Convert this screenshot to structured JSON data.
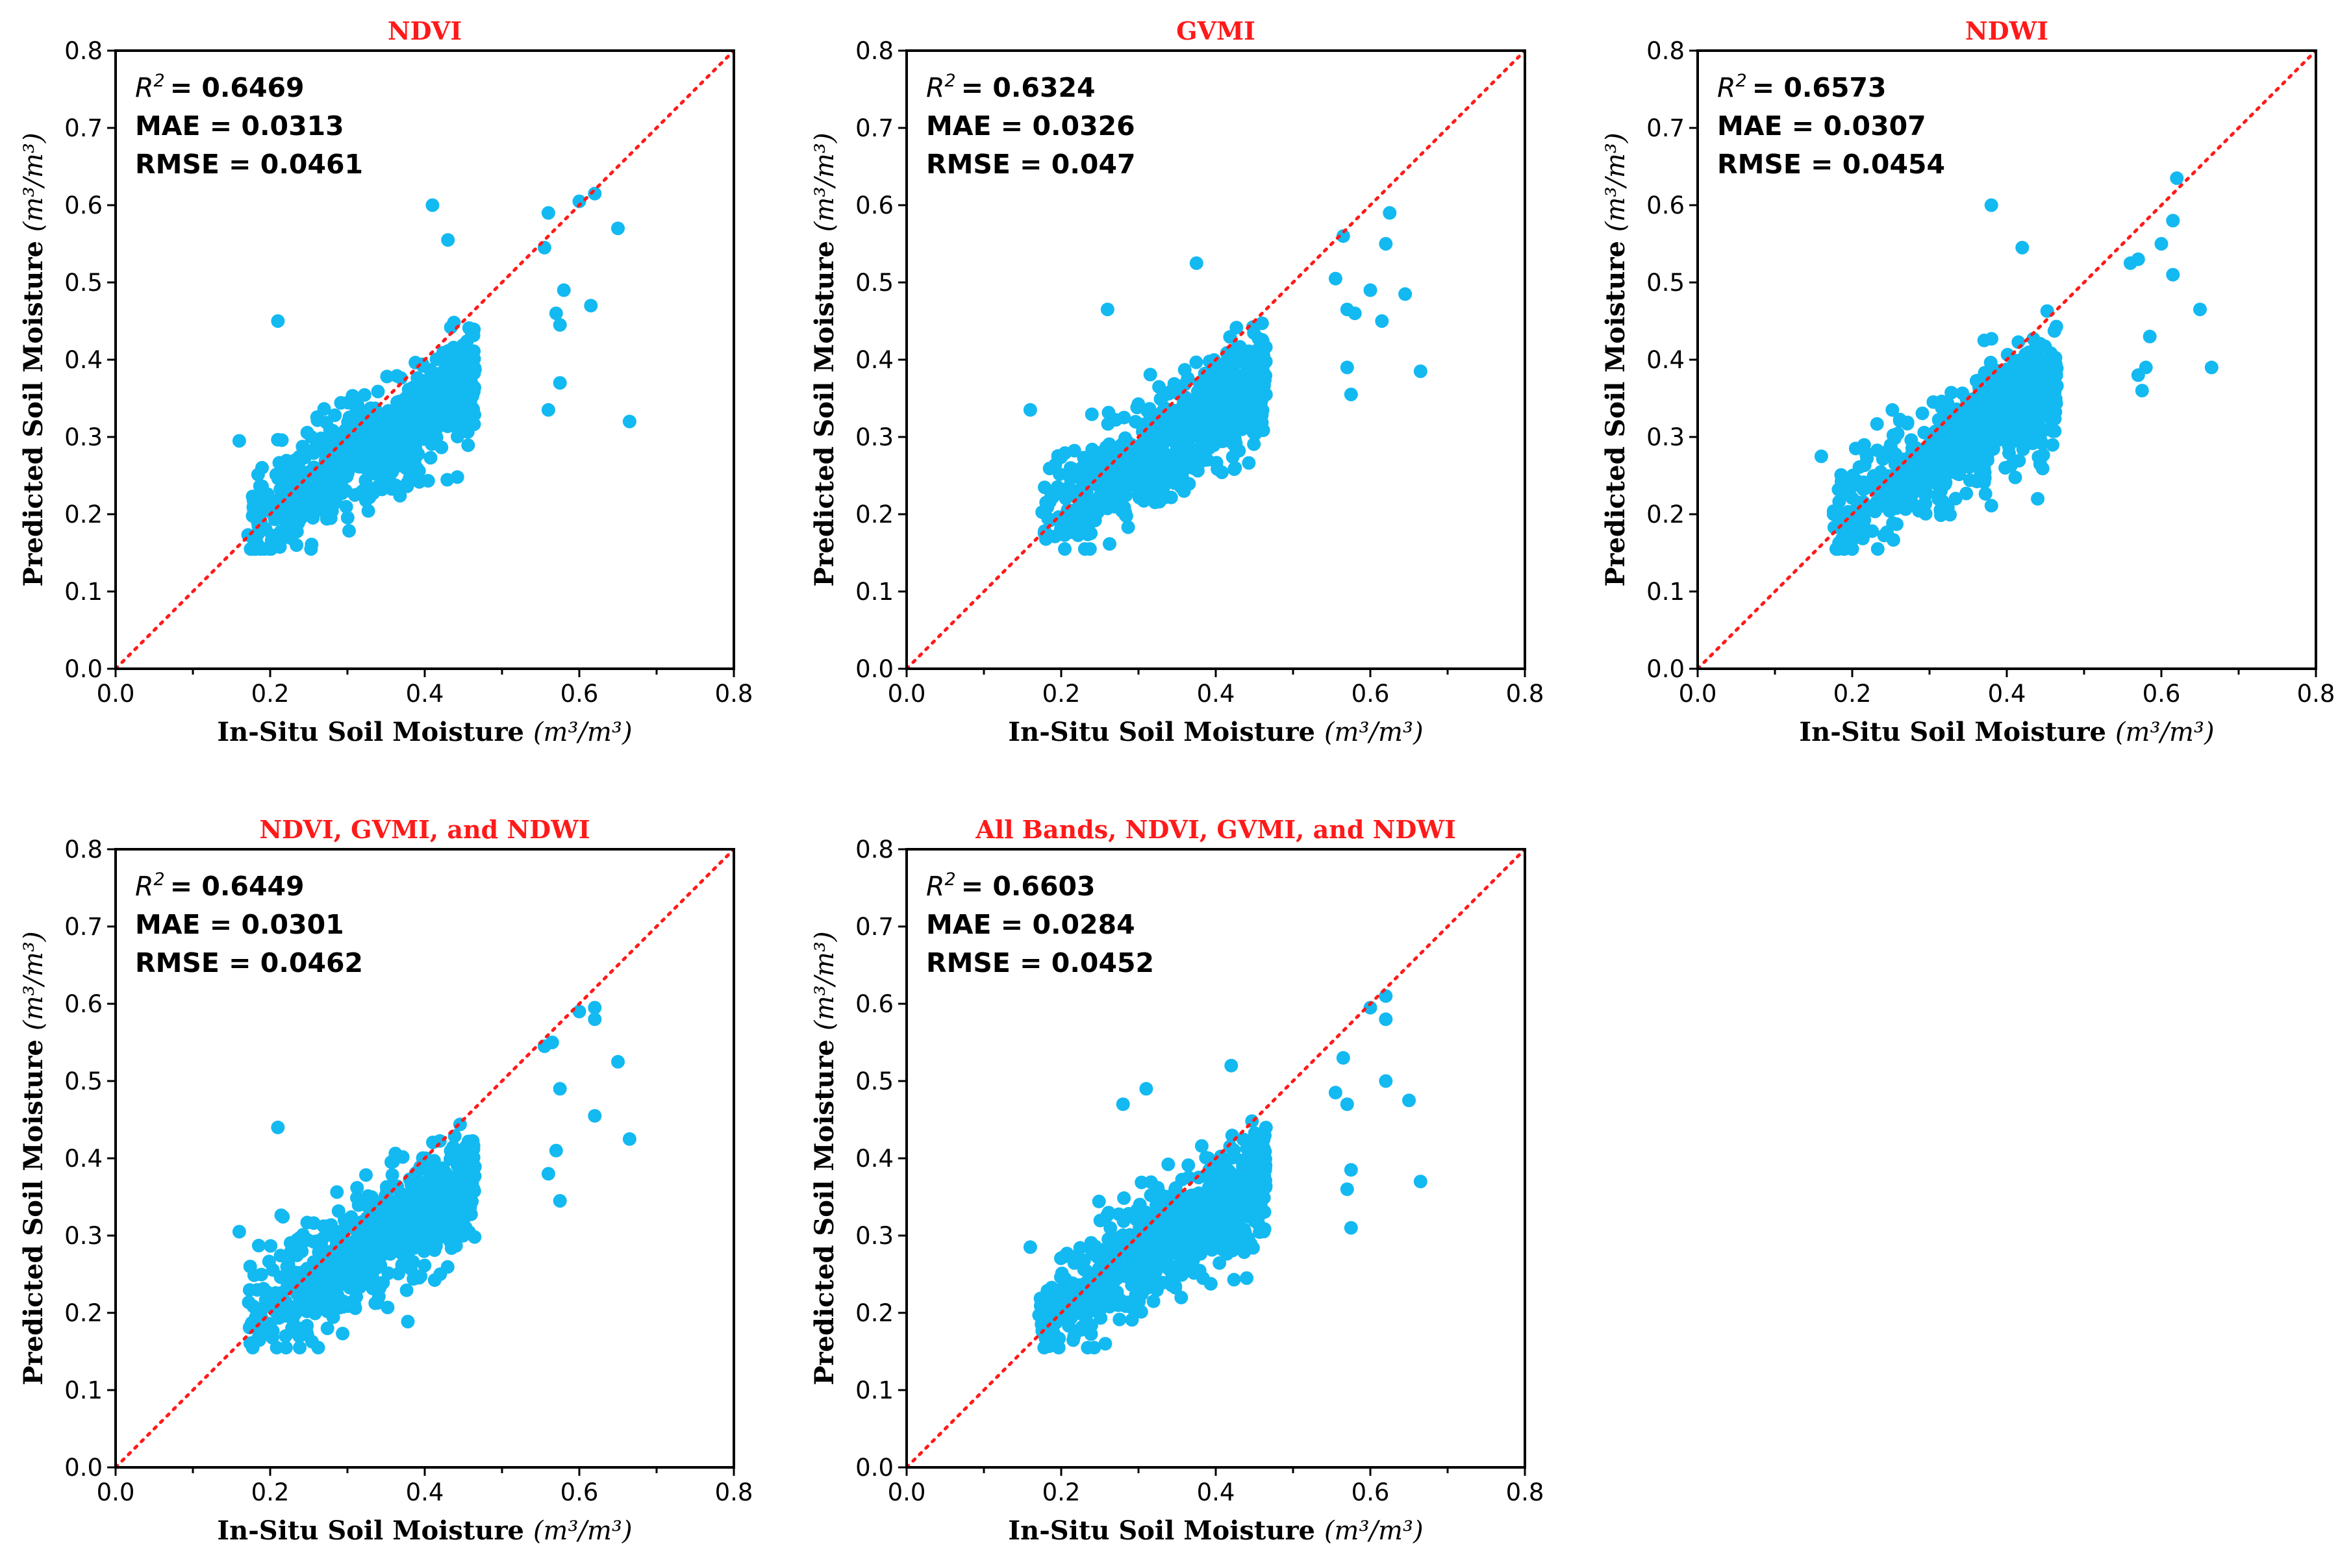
{
  "colors": {
    "point": "#13b9f1",
    "identity_line": "#ff1a1a",
    "title": "#ff1a1a"
  },
  "chart_data": [
    {
      "type": "scatter",
      "title": "NDVI",
      "xlabel_text": "In-Situ Soil Moisture",
      "ylabel_text": "Predicted Soil Moisture",
      "unit_text": "(m³/m³)",
      "xlim": [
        0.0,
        0.8
      ],
      "ylim": [
        0.0,
        0.8
      ],
      "ticks": [
        "0.0",
        "0.1",
        "0.2",
        "0.3",
        "0.4",
        "0.5",
        "0.6",
        "0.7",
        "0.8"
      ],
      "stats": {
        "r2_label": "R",
        "r2_sup": "2",
        "r2_value": "= 0.6469",
        "mae": "MAE = 0.0313",
        "rmse": "RMSE = 0.0461"
      },
      "outliers": [
        [
          0.16,
          0.295
        ],
        [
          0.21,
          0.45
        ],
        [
          0.41,
          0.6
        ],
        [
          0.43,
          0.555
        ],
        [
          0.555,
          0.545
        ],
        [
          0.56,
          0.59
        ],
        [
          0.575,
          0.445
        ],
        [
          0.57,
          0.46
        ],
        [
          0.58,
          0.49
        ],
        [
          0.6,
          0.605
        ],
        [
          0.62,
          0.615
        ],
        [
          0.65,
          0.57
        ],
        [
          0.615,
          0.47
        ],
        [
          0.575,
          0.37
        ],
        [
          0.56,
          0.335
        ],
        [
          0.665,
          0.32
        ]
      ]
    },
    {
      "type": "scatter",
      "title": "GVMI",
      "xlabel_text": "In-Situ Soil Moisture",
      "ylabel_text": "Predicted Soil Moisture",
      "unit_text": "(m³/m³)",
      "xlim": [
        0.0,
        0.8
      ],
      "ylim": [
        0.0,
        0.8
      ],
      "ticks": [
        "0.0",
        "0.1",
        "0.2",
        "0.3",
        "0.4",
        "0.5",
        "0.6",
        "0.7",
        "0.8"
      ],
      "stats": {
        "r2_label": "R",
        "r2_sup": "2",
        "r2_value": "= 0.6324",
        "mae": "MAE = 0.0326",
        "rmse": "RMSE = 0.047"
      },
      "outliers": [
        [
          0.16,
          0.335
        ],
        [
          0.26,
          0.465
        ],
        [
          0.375,
          0.525
        ],
        [
          0.425,
          0.26
        ],
        [
          0.555,
          0.505
        ],
        [
          0.565,
          0.56
        ],
        [
          0.57,
          0.465
        ],
        [
          0.58,
          0.46
        ],
        [
          0.6,
          0.49
        ],
        [
          0.62,
          0.55
        ],
        [
          0.625,
          0.59
        ],
        [
          0.645,
          0.485
        ],
        [
          0.615,
          0.45
        ],
        [
          0.57,
          0.39
        ],
        [
          0.575,
          0.355
        ],
        [
          0.665,
          0.385
        ]
      ]
    },
    {
      "type": "scatter",
      "title": "NDWI",
      "xlabel_text": "In-Situ Soil Moisture",
      "ylabel_text": "Predicted Soil Moisture",
      "unit_text": "(m³/m³)",
      "xlim": [
        0.0,
        0.8
      ],
      "ylim": [
        0.0,
        0.8
      ],
      "ticks": [
        "0.0",
        "0.1",
        "0.2",
        "0.3",
        "0.4",
        "0.5",
        "0.6",
        "0.7",
        "0.8"
      ],
      "stats": {
        "r2_label": "R",
        "r2_sup": "2",
        "r2_value": "= 0.6573",
        "mae": "MAE = 0.0307",
        "rmse": "RMSE = 0.0454"
      },
      "outliers": [
        [
          0.16,
          0.275
        ],
        [
          0.2,
          0.155
        ],
        [
          0.38,
          0.6
        ],
        [
          0.42,
          0.545
        ],
        [
          0.44,
          0.22
        ],
        [
          0.56,
          0.525
        ],
        [
          0.57,
          0.53
        ],
        [
          0.57,
          0.38
        ],
        [
          0.58,
          0.39
        ],
        [
          0.575,
          0.36
        ],
        [
          0.585,
          0.43
        ],
        [
          0.6,
          0.55
        ],
        [
          0.615,
          0.58
        ],
        [
          0.62,
          0.635
        ],
        [
          0.615,
          0.51
        ],
        [
          0.65,
          0.465
        ],
        [
          0.665,
          0.39
        ]
      ]
    },
    {
      "type": "scatter",
      "title": "NDVI, GVMI, and NDWI",
      "xlabel_text": "In-Situ Soil Moisture",
      "ylabel_text": "Predicted Soil Moisture",
      "unit_text": "(m³/m³)",
      "xlim": [
        0.0,
        0.8
      ],
      "ylim": [
        0.0,
        0.8
      ],
      "ticks": [
        "0.0",
        "0.1",
        "0.2",
        "0.3",
        "0.4",
        "0.5",
        "0.6",
        "0.7",
        "0.8"
      ],
      "stats": {
        "r2_label": "R",
        "r2_sup": "2",
        "r2_value": "= 0.6449",
        "mae": "MAE = 0.0301",
        "rmse": "RMSE = 0.0462"
      },
      "outliers": [
        [
          0.16,
          0.305
        ],
        [
          0.21,
          0.44
        ],
        [
          0.22,
          0.17
        ],
        [
          0.42,
          0.25
        ],
        [
          0.555,
          0.545
        ],
        [
          0.565,
          0.55
        ],
        [
          0.575,
          0.49
        ],
        [
          0.57,
          0.41
        ],
        [
          0.575,
          0.345
        ],
        [
          0.56,
          0.38
        ],
        [
          0.6,
          0.59
        ],
        [
          0.62,
          0.595
        ],
        [
          0.62,
          0.58
        ],
        [
          0.65,
          0.525
        ],
        [
          0.62,
          0.455
        ],
        [
          0.665,
          0.425
        ]
      ]
    },
    {
      "type": "scatter",
      "title": "All Bands, NDVI, GVMI, and NDWI",
      "xlabel_text": "In-Situ Soil Moisture",
      "ylabel_text": "Predicted Soil Moisture",
      "unit_text": "(m³/m³)",
      "xlim": [
        0.0,
        0.8
      ],
      "ylim": [
        0.0,
        0.8
      ],
      "ticks": [
        "0.0",
        "0.1",
        "0.2",
        "0.3",
        "0.4",
        "0.5",
        "0.6",
        "0.7",
        "0.8"
      ],
      "stats": {
        "r2_label": "R",
        "r2_sup": "2",
        "r2_value": "= 0.6603",
        "mae": "MAE = 0.0284",
        "rmse": "RMSE = 0.0452"
      },
      "outliers": [
        [
          0.16,
          0.285
        ],
        [
          0.28,
          0.47
        ],
        [
          0.31,
          0.49
        ],
        [
          0.42,
          0.52
        ],
        [
          0.44,
          0.245
        ],
        [
          0.555,
          0.485
        ],
        [
          0.565,
          0.53
        ],
        [
          0.57,
          0.47
        ],
        [
          0.575,
          0.385
        ],
        [
          0.57,
          0.36
        ],
        [
          0.575,
          0.31
        ],
        [
          0.6,
          0.595
        ],
        [
          0.62,
          0.61
        ],
        [
          0.62,
          0.58
        ],
        [
          0.62,
          0.5
        ],
        [
          0.65,
          0.475
        ],
        [
          0.665,
          0.37
        ]
      ]
    }
  ]
}
